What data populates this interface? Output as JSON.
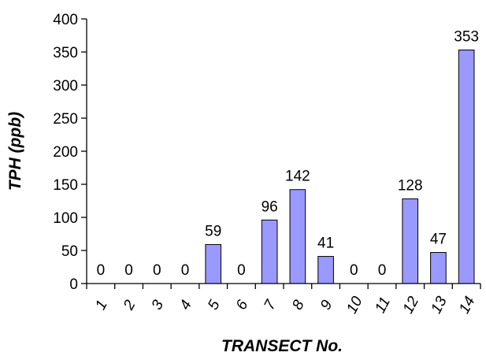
{
  "chart_data": {
    "type": "bar",
    "categories": [
      "1",
      "2",
      "3",
      "4",
      "5",
      "6",
      "7",
      "8",
      "9",
      "10",
      "11",
      "12",
      "13",
      "14"
    ],
    "values": [
      0,
      0,
      0,
      0,
      59,
      0,
      96,
      142,
      41,
      0,
      0,
      128,
      47,
      353
    ],
    "data_labels": [
      "0",
      "0",
      "0",
      "0",
      "59",
      "0",
      "96",
      "142",
      "41",
      "0",
      "0",
      "128",
      "47",
      "353"
    ],
    "xlabel": "TRANSECT No.",
    "ylabel": "TPH (ppb)",
    "ylim": [
      0,
      400
    ],
    "yticks": [
      0,
      50,
      100,
      150,
      200,
      250,
      300,
      350,
      400
    ],
    "bar_color": "#9999ff",
    "grid": false,
    "legend": "none"
  }
}
